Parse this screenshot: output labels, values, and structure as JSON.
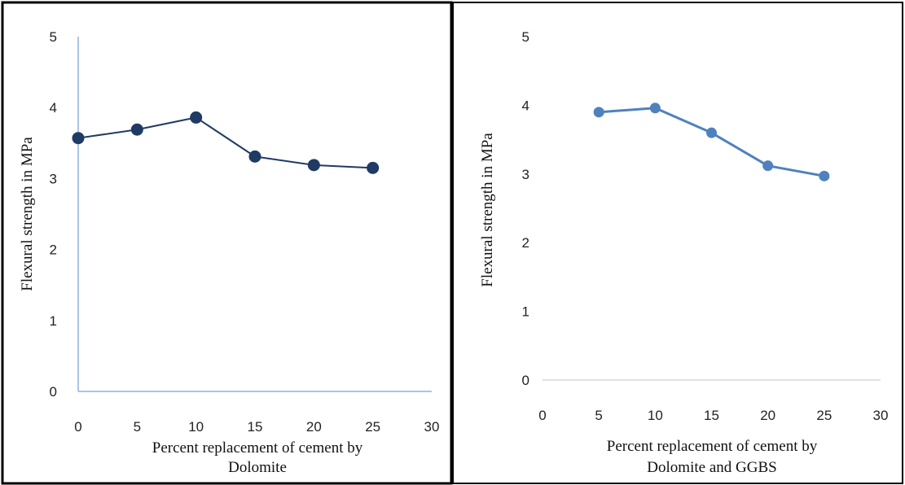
{
  "chart_data": [
    {
      "type": "line",
      "x": [
        0,
        5,
        10,
        15,
        20,
        25
      ],
      "series": [
        {
          "values": [
            3.57,
            3.69,
            3.86,
            3.31,
            3.19,
            3.15
          ],
          "color": "#1f3a63"
        }
      ],
      "xlabel": [
        "Percent replacement of cement by",
        "Dolomite"
      ],
      "ylabel": "Flexural strength in MPa",
      "xlim": [
        0,
        30
      ],
      "ylim": [
        0,
        5
      ],
      "xticks": [
        "0",
        "5",
        "10",
        "15",
        "20",
        "25",
        "30"
      ],
      "yticks": [
        "0",
        "1",
        "2",
        "3",
        "4",
        "5"
      ],
      "grid": false,
      "axis_color": "#8db3e2"
    },
    {
      "type": "line",
      "x": [
        5,
        10,
        15,
        20,
        25
      ],
      "series": [
        {
          "values": [
            3.9,
            3.96,
            3.6,
            3.12,
            2.97
          ],
          "color": "#4f81bd"
        }
      ],
      "xlabel": [
        "Percent replacement of cement by",
        "Dolomite and GGBS"
      ],
      "ylabel": "Flexural strength in MPa",
      "xlim": [
        0,
        30
      ],
      "ylim": [
        0,
        5
      ],
      "xticks": [
        "0",
        "5",
        "10",
        "15",
        "20",
        "25",
        "30"
      ],
      "yticks": [
        "0",
        "1",
        "2",
        "3",
        "4",
        "5"
      ],
      "grid": false,
      "axis_color": "#d9d9d9"
    }
  ]
}
